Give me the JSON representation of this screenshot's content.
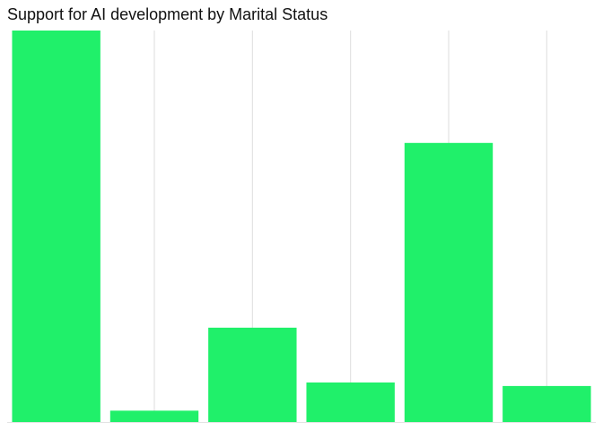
{
  "chart_data": {
    "type": "bar",
    "title": "Support for AI development by Marital Status",
    "xlabel": "",
    "ylabel": "",
    "categories": [
      "",
      "",
      "",
      "",
      "",
      ""
    ],
    "values": [
      100,
      2.9,
      24.1,
      10.1,
      71.3,
      9.2
    ],
    "ylim": [
      0,
      100
    ],
    "grid": {
      "vertical": true,
      "horizontal": false
    },
    "colors": {
      "bar": "#20F06A",
      "grid": "#E3E3E3",
      "baseline": "#E3E3E3",
      "title": "#111111",
      "background": "#FFFFFF"
    }
  }
}
